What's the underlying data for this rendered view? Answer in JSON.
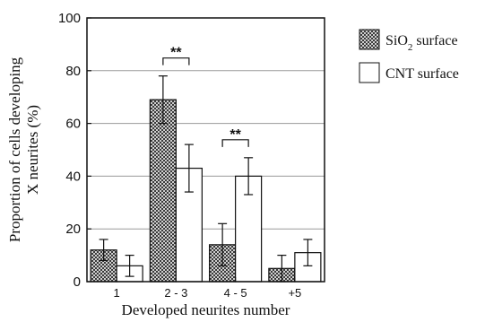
{
  "chart_data": {
    "type": "bar",
    "categories": [
      "1",
      "2 - 3",
      "4 - 5",
      "+5"
    ],
    "series": [
      {
        "name": "SiO2 surface",
        "values": [
          12,
          69,
          14,
          5
        ],
        "errors": [
          4,
          9,
          8,
          5
        ],
        "fill": "hatched",
        "color": "#555555"
      },
      {
        "name": "CNT surface",
        "values": [
          6,
          43,
          40,
          11
        ],
        "errors": [
          4,
          9,
          7,
          5
        ],
        "fill": "white",
        "color": "#ffffff"
      }
    ],
    "legend": [
      {
        "base": "SiO",
        "sub": "2",
        "rest": " surface"
      },
      {
        "base": "CNT surface",
        "sub": "",
        "rest": ""
      }
    ],
    "ylabel_lines": [
      "Proportion of cells developing",
      "X neurites (%)"
    ],
    "xlabel": "Developed neurites number",
    "ylim": [
      0,
      100
    ],
    "yticks": [
      0,
      20,
      40,
      60,
      80,
      100
    ],
    "grid": true,
    "legend_position": "right",
    "significance": [
      {
        "category_index": 1,
        "label": "**"
      },
      {
        "category_index": 2,
        "label": "**"
      }
    ]
  }
}
